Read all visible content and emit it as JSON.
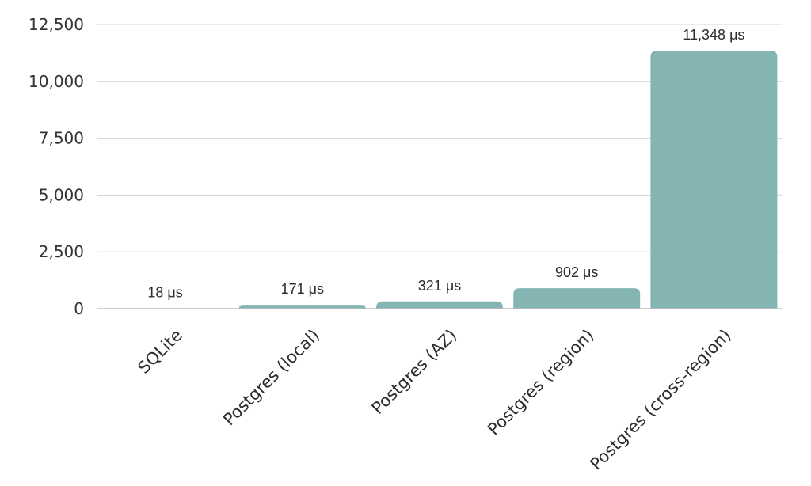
{
  "chart_data": {
    "type": "bar",
    "title": "",
    "xlabel": "",
    "ylabel": "",
    "categories": [
      "SQLite",
      "Postgres (local)",
      "Postgres (AZ)",
      "Postgres (region)",
      "Postgres (cross-region)"
    ],
    "values": [
      18,
      171,
      321,
      902,
      11348
    ],
    "data_labels": [
      "18 μs",
      "171 μs",
      "321 μs",
      "902 μs",
      "11,348 μs"
    ],
    "ylim": [
      0,
      12500
    ],
    "y_ticks": [
      0,
      2500,
      5000,
      7500,
      10000,
      12500
    ],
    "y_tick_labels": [
      "0",
      "2,500",
      "5,000",
      "7,500",
      "10,000",
      "12,500"
    ],
    "grid": true,
    "legend": "none",
    "colors": {
      "bar": "#85b5b3",
      "grid": "#d4d4d4",
      "text": "#2b2b2b"
    }
  }
}
